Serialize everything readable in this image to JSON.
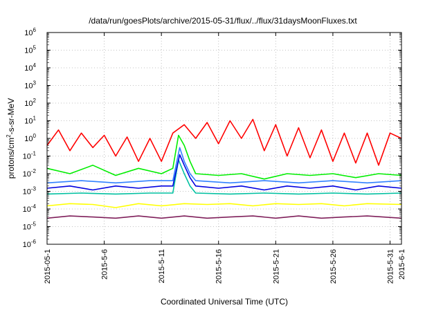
{
  "chart_data": {
    "type": "line",
    "title": "/data/run/goesPlots/archive/2015-05-31/flux/../flux/31daysMoonFluxes.txt",
    "xlabel": "Coordinated Universal Time (UTC)",
    "ylabel": {
      "prefix": "protons/cm",
      "sup": "2",
      "suffix": "-s-sr-MeV"
    },
    "y_scale": "log",
    "ylim": [
      1e-06,
      1000000.0
    ],
    "xlim": [
      "2015-05-01",
      "2015-06-01"
    ],
    "grid": true,
    "x_ticks": [
      {
        "date": "2015-05-01",
        "label": "2015-05-1"
      },
      {
        "date": "2015-05-06",
        "label": "2015-5-6"
      },
      {
        "date": "2015-05-11",
        "label": "2015-5-11"
      },
      {
        "date": "2015-05-16",
        "label": "2015-5-16"
      },
      {
        "date": "2015-05-21",
        "label": "2015-5-21"
      },
      {
        "date": "2015-05-26",
        "label": "2015-5-26"
      },
      {
        "date": "2015-05-31",
        "label": "2015-5-31"
      },
      {
        "date": "2015-06-01",
        "label": "2015-6-1"
      }
    ],
    "y_ticks": [
      {
        "value": 1e-06,
        "base": "10",
        "exp": "-6"
      },
      {
        "value": 1e-05,
        "base": "10",
        "exp": "-5"
      },
      {
        "value": 0.0001,
        "base": "10",
        "exp": "-4"
      },
      {
        "value": 0.001,
        "base": "10",
        "exp": "-3"
      },
      {
        "value": 0.01,
        "base": "10",
        "exp": "-2"
      },
      {
        "value": 0.1,
        "base": "10",
        "exp": "-1"
      },
      {
        "value": 1,
        "base": "10",
        "exp": "0"
      },
      {
        "value": 10,
        "base": "10",
        "exp": "1"
      },
      {
        "value": 100,
        "base": "10",
        "exp": "2"
      },
      {
        "value": 1000.0,
        "base": "10",
        "exp": "3"
      },
      {
        "value": 10000.0,
        "base": "10",
        "exp": "4"
      },
      {
        "value": 100000.0,
        "base": "10",
        "exp": "5"
      },
      {
        "value": 1000000.0,
        "base": "10",
        "exp": "6"
      }
    ],
    "series": [
      {
        "color": "#7f1f5a",
        "x": [
          "2015-05-01",
          "2015-05-03",
          "2015-05-05",
          "2015-05-07",
          "2015-05-09",
          "2015-05-11",
          "2015-05-13",
          "2015-05-15",
          "2015-05-17",
          "2015-05-19",
          "2015-05-21",
          "2015-05-23",
          "2015-05-25",
          "2015-05-27",
          "2015-05-29",
          "2015-06-01"
        ],
        "values": [
          3e-05,
          4e-05,
          3.5e-05,
          3e-05,
          4e-05,
          3e-05,
          4e-05,
          3e-05,
          3.5e-05,
          4e-05,
          3e-05,
          4e-05,
          3e-05,
          3.5e-05,
          4e-05,
          3e-05
        ]
      },
      {
        "color": "#ffff00",
        "x": [
          "2015-05-01",
          "2015-05-03",
          "2015-05-05",
          "2015-05-07",
          "2015-05-09",
          "2015-05-11",
          "2015-05-13",
          "2015-05-15",
          "2015-05-17",
          "2015-05-19",
          "2015-05-21",
          "2015-05-23",
          "2015-05-25",
          "2015-05-27",
          "2015-05-29",
          "2015-06-01"
        ],
        "values": [
          0.00015,
          0.0002,
          0.00018,
          0.00012,
          0.0002,
          0.00015,
          0.0002,
          0.00018,
          0.0002,
          0.00015,
          0.0002,
          0.00018,
          0.0002,
          0.00015,
          0.0002,
          0.00018
        ]
      },
      {
        "color": "#00c0a0",
        "x": [
          "2015-05-01",
          "2015-05-04",
          "2015-05-07",
          "2015-05-10",
          "2015-05-12",
          "2015-05-12.5",
          "2015-05-13",
          "2015-05-13.5",
          "2015-05-14",
          "2015-05-17",
          "2015-05-20",
          "2015-05-23",
          "2015-05-26",
          "2015-05-29",
          "2015-06-01"
        ],
        "values": [
          0.0007,
          0.0008,
          0.0007,
          0.0008,
          0.0008,
          0.06,
          0.01,
          0.002,
          0.0008,
          0.0007,
          0.0008,
          0.0007,
          0.0008,
          0.0007,
          0.0008
        ]
      },
      {
        "color": "#0000e0",
        "x": [
          "2015-05-01",
          "2015-05-03",
          "2015-05-05",
          "2015-05-07",
          "2015-05-09",
          "2015-05-11",
          "2015-05-12",
          "2015-05-12.6",
          "2015-05-13",
          "2015-05-13.5",
          "2015-05-14",
          "2015-05-16",
          "2015-05-18",
          "2015-05-20",
          "2015-05-22",
          "2015-05-24",
          "2015-05-26",
          "2015-05-28",
          "2015-05-30",
          "2015-06-01"
        ],
        "values": [
          0.0015,
          0.002,
          0.0012,
          0.002,
          0.0015,
          0.002,
          0.002,
          0.12,
          0.03,
          0.006,
          0.002,
          0.0015,
          0.002,
          0.0012,
          0.002,
          0.0015,
          0.002,
          0.0012,
          0.002,
          0.0015
        ]
      },
      {
        "color": "#3080ff",
        "x": [
          "2015-05-01",
          "2015-05-04",
          "2015-05-07",
          "2015-05-10",
          "2015-05-12",
          "2015-05-12.6",
          "2015-05-13",
          "2015-05-13.5",
          "2015-05-14",
          "2015-05-17",
          "2015-05-20",
          "2015-05-23",
          "2015-05-26",
          "2015-05-29",
          "2015-06-01"
        ],
        "values": [
          0.003,
          0.004,
          0.003,
          0.004,
          0.004,
          0.3,
          0.05,
          0.01,
          0.004,
          0.003,
          0.004,
          0.003,
          0.004,
          0.003,
          0.004
        ]
      },
      {
        "color": "#00ee00",
        "x": [
          "2015-05-01",
          "2015-05-03",
          "2015-05-05",
          "2015-05-07",
          "2015-05-09",
          "2015-05-11",
          "2015-05-12",
          "2015-05-12.5",
          "2015-05-13",
          "2015-05-13.5",
          "2015-05-14",
          "2015-05-16",
          "2015-05-18",
          "2015-05-20",
          "2015-05-22",
          "2015-05-24",
          "2015-05-26",
          "2015-05-28",
          "2015-05-30",
          "2015-06-01"
        ],
        "values": [
          0.02,
          0.01,
          0.03,
          0.008,
          0.02,
          0.01,
          0.02,
          1.5,
          0.4,
          0.05,
          0.01,
          0.008,
          0.01,
          0.005,
          0.01,
          0.008,
          0.01,
          0.006,
          0.01,
          0.008
        ]
      },
      {
        "color": "#ff0000",
        "x": [
          "2015-05-01",
          "2015-05-02",
          "2015-05-03",
          "2015-05-04",
          "2015-05-05",
          "2015-05-06",
          "2015-05-07",
          "2015-05-08",
          "2015-05-09",
          "2015-05-10",
          "2015-05-11",
          "2015-05-12",
          "2015-05-13",
          "2015-05-14",
          "2015-05-15",
          "2015-05-16",
          "2015-05-17",
          "2015-05-18",
          "2015-05-19",
          "2015-05-20",
          "2015-05-21",
          "2015-05-22",
          "2015-05-23",
          "2015-05-24",
          "2015-05-25",
          "2015-05-26",
          "2015-05-27",
          "2015-05-28",
          "2015-05-29",
          "2015-05-30",
          "2015-05-31",
          "2015-06-01"
        ],
        "values": [
          0.4,
          3,
          0.2,
          2,
          0.3,
          1.5,
          0.1,
          1.2,
          0.05,
          1,
          0.05,
          2,
          6,
          1,
          8,
          0.5,
          10,
          1,
          12,
          0.2,
          6,
          0.1,
          4,
          0.08,
          3,
          0.05,
          2,
          0.04,
          2,
          0.03,
          2,
          1
        ]
      }
    ]
  }
}
